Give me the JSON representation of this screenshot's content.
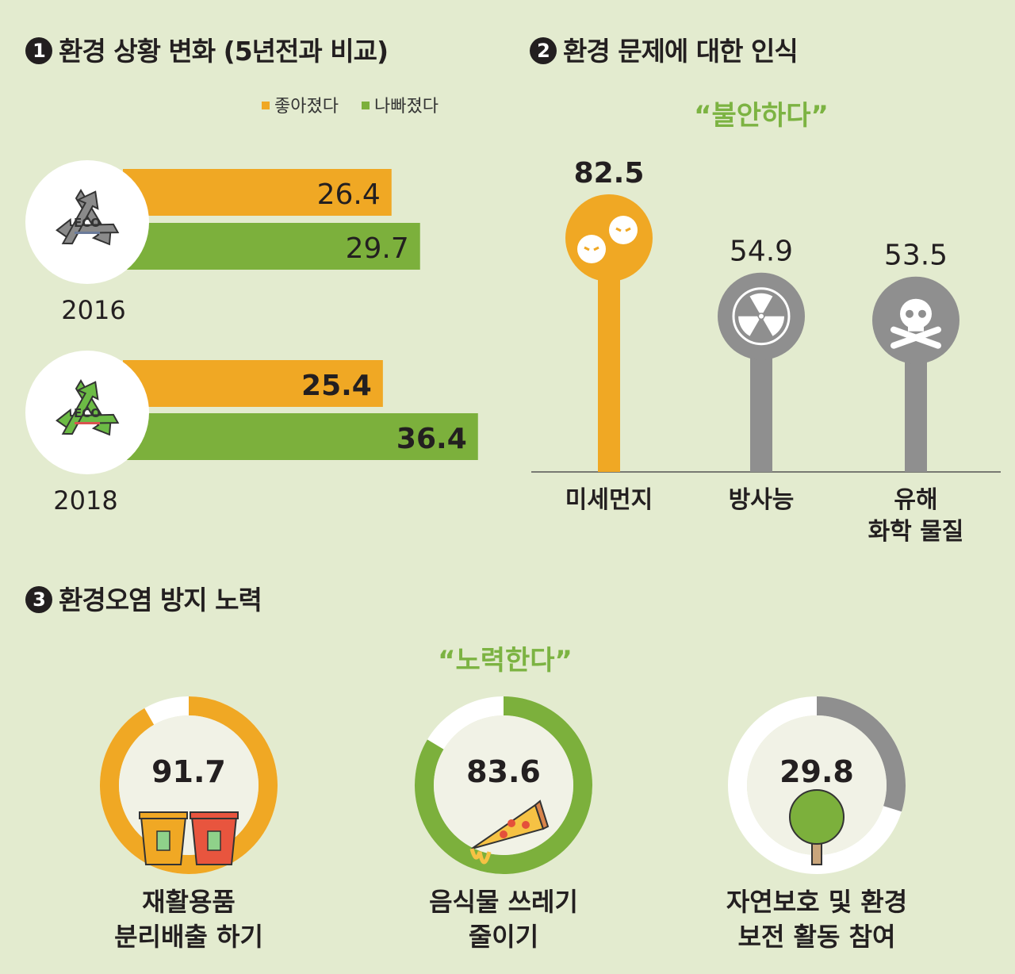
{
  "colors": {
    "orange": "#f0a824",
    "green": "#7cb03c",
    "gray": "#8f8f8f",
    "bg": "#e3ebcf",
    "white": "#ffffff",
    "inner": "#f1f2e6"
  },
  "section1": {
    "number": "1",
    "title": "환경 상황 변화 (5년전과 비교)",
    "legend": [
      "좋아졌다",
      "나빠졌다"
    ],
    "eco_label": "ECO"
  },
  "section2": {
    "number": "2",
    "title": "환경 문제에 대한 인식",
    "quote": "“불안하다”"
  },
  "section3": {
    "number": "3",
    "title": "환경오염 방지 노력",
    "quote": "“노력한다”"
  },
  "chart_data": [
    {
      "type": "bar",
      "title": "환경 상황 변화 (5년전과 비교)",
      "categories": [
        "2016",
        "2018"
      ],
      "series": [
        {
          "name": "좋아졌다",
          "values": [
            26.4,
            25.4
          ]
        },
        {
          "name": "나빠졌다",
          "values": [
            29.7,
            36.4
          ]
        }
      ],
      "labels": [
        [
          "26.4",
          "29.7"
        ],
        [
          "25.4",
          "36.4"
        ]
      ],
      "legend": "top-right",
      "unit": "%"
    },
    {
      "type": "bar",
      "subtype": "lollipop",
      "title": "환경 문제에 대한 인식",
      "subtitle": "“불안하다”",
      "categories": [
        "미세먼지",
        "방사능",
        "유해 화학 물질"
      ],
      "category_lines": [
        [
          "미세먼지"
        ],
        [
          "방사능"
        ],
        [
          "유해",
          "화학 물질"
        ]
      ],
      "values": [
        82.5,
        54.9,
        53.5
      ],
      "labels": [
        "82.5",
        "54.9",
        "53.5"
      ],
      "icons": [
        "dust-face-icon",
        "radiation-icon",
        "skull-crossbones-icon"
      ]
    },
    {
      "type": "pie",
      "subtype": "donut",
      "title": "환경오염 방지 노력",
      "subtitle": "“노력한다”",
      "categories": [
        "재활용품 분리배출 하기",
        "음식물 쓰레기 줄이기",
        "자연보호 및 환경 보전 활동 참여"
      ],
      "category_lines": [
        [
          "재활용품",
          "분리배출 하기"
        ],
        [
          "음식물 쓰레기",
          "줄이기"
        ],
        [
          "자연보호 및 환경",
          "보전 활동 참여"
        ]
      ],
      "values": [
        91.7,
        83.6,
        29.8
      ],
      "labels": [
        "91.7",
        "83.6",
        "29.8"
      ],
      "max": 100,
      "icons": [
        "recycle-bins-icon",
        "pizza-icon",
        "tree-icon"
      ]
    }
  ]
}
